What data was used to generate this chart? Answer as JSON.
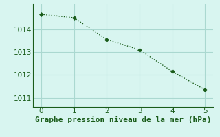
{
  "x": [
    0,
    1,
    2,
    3,
    4,
    5
  ],
  "y": [
    1014.65,
    1014.5,
    1013.55,
    1013.1,
    1012.15,
    1011.35
  ],
  "line_color": "#1a5c1a",
  "marker_color": "#1a5c1a",
  "background_color": "#d8f5f0",
  "grid_color": "#aad8d0",
  "xlabel": "Graphe pression niveau de la mer (hPa)",
  "xlim": [
    -0.25,
    5.25
  ],
  "ylim": [
    1010.6,
    1015.1
  ],
  "yticks": [
    1011,
    1012,
    1013,
    1014
  ],
  "xticks": [
    0,
    1,
    2,
    3,
    4,
    5
  ],
  "line_width": 1.0,
  "marker_size": 3,
  "xlabel_fontsize": 8,
  "tick_fontsize": 7.5,
  "tick_color": "#1a5c1a"
}
